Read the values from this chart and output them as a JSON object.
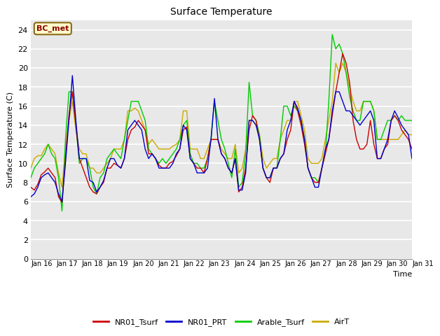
{
  "title": "Surface Temperature",
  "ylabel": "Surface Temperature (C)",
  "xlabel": "Time",
  "ylim": [
    0,
    25
  ],
  "yticks": [
    0,
    2,
    4,
    6,
    8,
    10,
    12,
    14,
    16,
    18,
    20,
    22,
    24
  ],
  "x_labels": [
    "Jan 16",
    "Jan 17",
    "Jan 18",
    "Jan 19",
    "Jan 20",
    "Jan 21",
    "Jan 22",
    "Jan 23",
    "Jan 24",
    "Jan 25",
    "Jan 26",
    "Jan 27",
    "Jan 28",
    "Jan 29",
    "Jan 30",
    "Jan 31"
  ],
  "site_label": "BC_met",
  "colors": {
    "NR01_Tsurf": "#cc0000",
    "NR01_PRT": "#0000cc",
    "Arable_Tsurf": "#00cc00",
    "AirT": "#ccaa00"
  },
  "background_color": "#ffffff",
  "plot_bg_color": "#e8e8e8",
  "grid_color": "#ffffff",
  "NR01_Tsurf": [
    7.5,
    7.2,
    7.8,
    8.8,
    9.1,
    9.5,
    9.0,
    8.5,
    6.5,
    5.9,
    10.5,
    15.0,
    17.5,
    14.0,
    10.5,
    9.5,
    8.5,
    7.5,
    7.0,
    6.8,
    7.5,
    8.0,
    9.5,
    9.5,
    10.0,
    9.8,
    9.5,
    10.5,
    12.5,
    13.5,
    13.8,
    14.5,
    14.0,
    13.5,
    11.0,
    11.0,
    10.5,
    9.8,
    9.5,
    9.5,
    10.0,
    10.2,
    10.8,
    11.5,
    13.5,
    13.8,
    10.5,
    10.0,
    9.5,
    9.5,
    9.0,
    10.5,
    12.5,
    12.5,
    12.5,
    11.0,
    10.5,
    9.5,
    9.0,
    10.5,
    7.0,
    7.5,
    9.5,
    13.5,
    15.0,
    14.5,
    12.5,
    9.5,
    8.5,
    8.0,
    9.5,
    9.5,
    10.5,
    11.0,
    12.5,
    13.5,
    16.5,
    15.5,
    14.0,
    12.0,
    9.5,
    8.5,
    8.0,
    8.0,
    9.5,
    11.0,
    12.5,
    15.0,
    17.5,
    19.5,
    21.5,
    20.5,
    18.5,
    14.5,
    12.5,
    11.5,
    11.5,
    12.0,
    14.5,
    12.0,
    10.5,
    10.5,
    11.5,
    12.0,
    14.5,
    15.0,
    14.5,
    13.5,
    13.0,
    12.5,
    11.5
  ],
  "NR01_PRT": [
    6.5,
    6.8,
    7.5,
    8.5,
    8.8,
    9.0,
    8.5,
    8.0,
    6.8,
    6.0,
    10.0,
    14.5,
    19.2,
    14.5,
    10.5,
    10.5,
    10.5,
    8.2,
    8.0,
    7.0,
    7.5,
    8.2,
    9.5,
    10.5,
    10.5,
    9.8,
    9.5,
    10.5,
    13.5,
    14.0,
    14.5,
    14.0,
    13.5,
    11.5,
    10.5,
    11.0,
    10.5,
    9.5,
    9.5,
    9.5,
    9.5,
    10.0,
    11.0,
    11.5,
    14.0,
    13.5,
    10.5,
    10.0,
    9.0,
    9.0,
    9.0,
    9.5,
    12.5,
    16.8,
    12.5,
    11.0,
    10.5,
    9.5,
    9.0,
    10.5,
    7.2,
    7.2,
    9.0,
    14.5,
    14.5,
    14.0,
    12.5,
    9.5,
    8.5,
    8.5,
    9.5,
    9.5,
    10.5,
    11.0,
    13.5,
    14.5,
    16.5,
    15.8,
    14.5,
    12.5,
    9.5,
    8.5,
    7.5,
    7.5,
    9.5,
    11.5,
    12.5,
    15.5,
    17.5,
    17.5,
    16.5,
    15.5,
    15.5,
    15.0,
    14.5,
    14.0,
    14.5,
    15.0,
    15.5,
    14.5,
    10.5,
    10.5,
    11.5,
    12.5,
    14.5,
    15.5,
    14.8,
    14.0,
    13.5,
    13.0,
    10.5
  ],
  "Arable_Tsurf": [
    8.5,
    9.5,
    10.0,
    10.5,
    11.0,
    12.0,
    11.0,
    10.5,
    8.5,
    5.0,
    12.5,
    17.5,
    17.5,
    14.0,
    10.0,
    10.5,
    10.5,
    9.5,
    7.5,
    6.8,
    8.5,
    9.0,
    10.5,
    11.0,
    11.5,
    11.0,
    10.5,
    12.5,
    14.5,
    16.5,
    16.5,
    16.5,
    15.5,
    14.5,
    11.5,
    11.0,
    10.5,
    10.0,
    10.5,
    10.0,
    10.5,
    11.0,
    11.5,
    12.5,
    14.0,
    14.5,
    11.0,
    10.0,
    10.0,
    9.5,
    9.5,
    10.5,
    12.5,
    16.5,
    14.5,
    12.5,
    11.5,
    10.0,
    8.5,
    11.5,
    7.5,
    8.0,
    11.0,
    18.5,
    15.0,
    14.5,
    13.0,
    9.5,
    8.5,
    8.5,
    9.5,
    9.5,
    12.5,
    16.0,
    16.0,
    15.0,
    16.0,
    15.5,
    14.5,
    12.5,
    9.5,
    8.5,
    8.5,
    8.0,
    9.5,
    11.0,
    16.5,
    23.5,
    22.0,
    22.5,
    21.5,
    19.5,
    17.0,
    15.5,
    14.5,
    14.5,
    16.5,
    16.5,
    16.5,
    15.5,
    12.5,
    12.5,
    13.5,
    14.5,
    14.5,
    15.0,
    14.5,
    15.0,
    14.5,
    14.5,
    14.5
  ],
  "AirT": [
    9.5,
    10.5,
    10.8,
    10.8,
    11.5,
    12.0,
    11.5,
    11.0,
    9.0,
    7.5,
    11.5,
    14.5,
    16.5,
    13.5,
    11.5,
    11.0,
    11.0,
    9.5,
    9.5,
    9.0,
    9.0,
    9.5,
    10.0,
    10.5,
    11.5,
    11.5,
    11.5,
    12.5,
    15.5,
    15.5,
    15.8,
    15.5,
    14.5,
    13.5,
    12.0,
    12.5,
    12.0,
    11.5,
    11.5,
    11.5,
    11.5,
    11.8,
    12.0,
    12.5,
    15.5,
    15.5,
    11.5,
    11.5,
    11.5,
    10.5,
    10.5,
    11.5,
    12.5,
    12.5,
    12.5,
    11.5,
    11.0,
    10.5,
    10.5,
    12.0,
    9.0,
    9.5,
    11.5,
    14.5,
    14.5,
    14.0,
    13.0,
    10.5,
    9.5,
    10.0,
    10.5,
    10.5,
    12.5,
    13.5,
    14.5,
    14.5,
    16.5,
    16.5,
    15.0,
    13.5,
    10.5,
    10.0,
    10.0,
    10.0,
    10.5,
    12.5,
    14.5,
    16.5,
    20.5,
    19.5,
    20.5,
    19.5,
    18.0,
    16.5,
    15.5,
    15.5,
    16.5,
    16.5,
    16.5,
    15.5,
    12.5,
    12.5,
    12.5,
    12.5,
    12.5,
    12.5,
    12.5,
    13.0,
    13.5,
    13.0,
    13.0
  ]
}
